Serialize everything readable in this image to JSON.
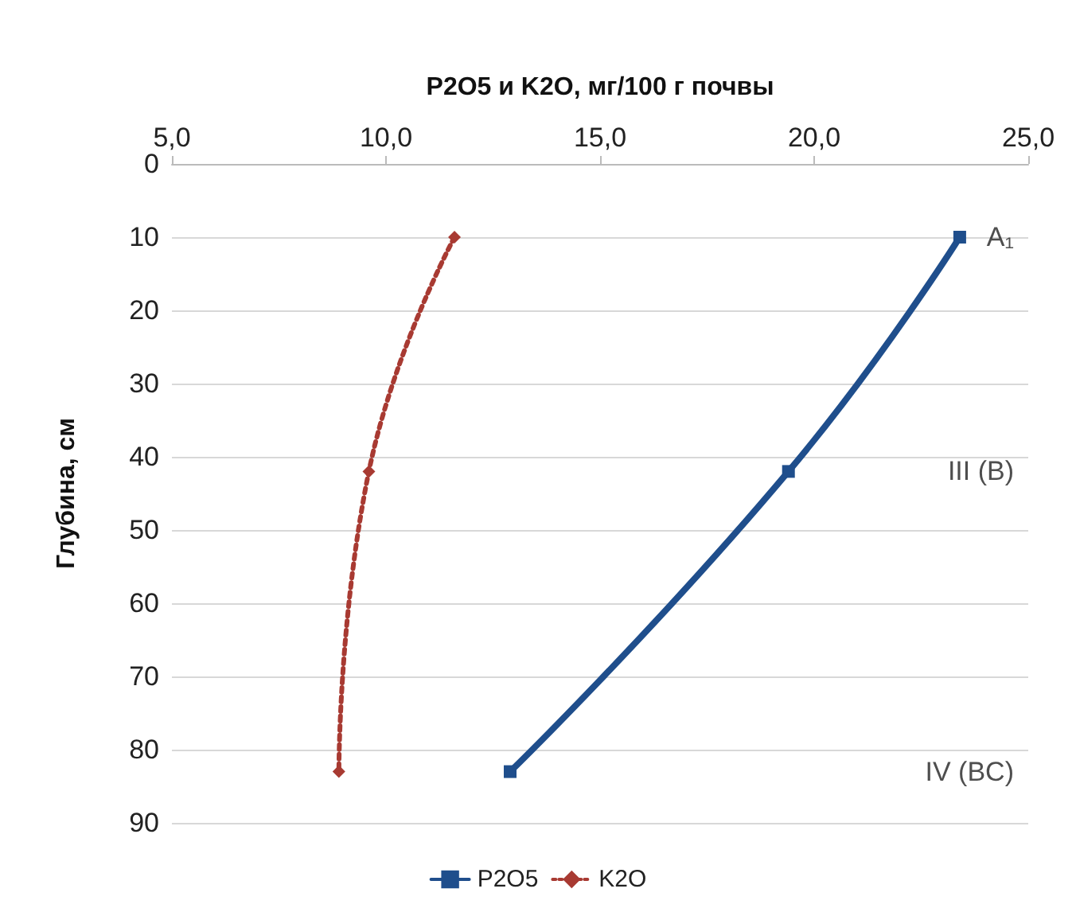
{
  "chart_data": {
    "type": "line",
    "xlabel": "P2O5 и K2O, мг/100 г почвы",
    "ylabel": "Глубина, см",
    "xlim": [
      5,
      25
    ],
    "xticks": [
      {
        "value": 5,
        "label": "5,0"
      },
      {
        "value": 10,
        "label": "10,0"
      },
      {
        "value": 15,
        "label": "15,0"
      },
      {
        "value": 20,
        "label": "20,0"
      },
      {
        "value": 25,
        "label": "25,0"
      }
    ],
    "ylim": [
      90,
      0
    ],
    "yticks": [
      0,
      10,
      20,
      30,
      40,
      50,
      60,
      70,
      80,
      90
    ],
    "grid": "y",
    "legend": "bottom",
    "series": [
      {
        "name": "P2O5",
        "color": "#1f4e8c",
        "x": [
          23.4,
          19.4,
          12.9
        ],
        "values": [
          10,
          42,
          83
        ],
        "marker": "square",
        "line_style": "solid"
      },
      {
        "name": "K2O",
        "color": "#a83a32",
        "x": [
          11.6,
          9.6,
          8.9
        ],
        "values": [
          10,
          42,
          83
        ],
        "marker": "diamond",
        "line_style": "dotted"
      }
    ],
    "annotations": [
      "A₁",
      "III (B)",
      "IV (BC)"
    ]
  }
}
